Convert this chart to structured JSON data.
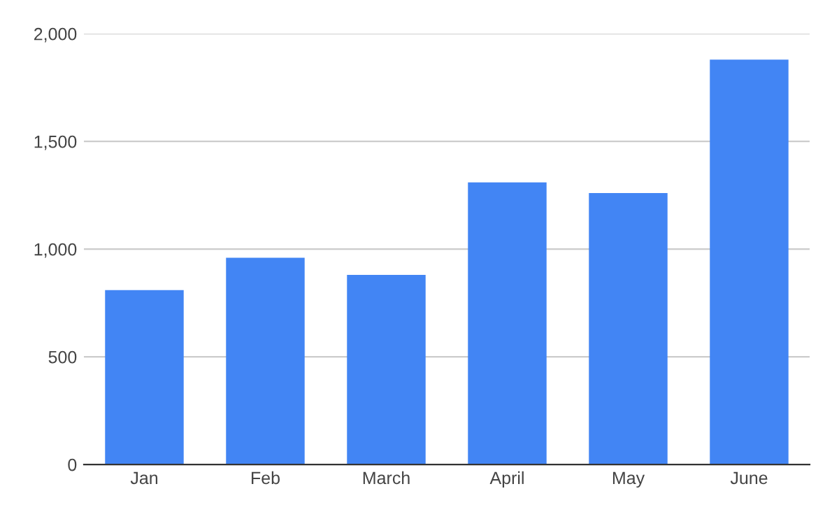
{
  "chart_data": {
    "type": "bar",
    "categories": [
      "Jan",
      "Feb",
      "March",
      "April",
      "May",
      "June"
    ],
    "values": [
      810,
      960,
      880,
      1310,
      1260,
      1880
    ],
    "color": "#4285f4",
    "ylim": [
      0,
      2000
    ],
    "yticks": [
      0,
      500,
      {
        "value": 1000,
        "label": "1,000"
      },
      {
        "value": 1500,
        "label": "1,500"
      },
      {
        "value": 2000,
        "label": "2,000"
      }
    ],
    "grid": "y"
  }
}
